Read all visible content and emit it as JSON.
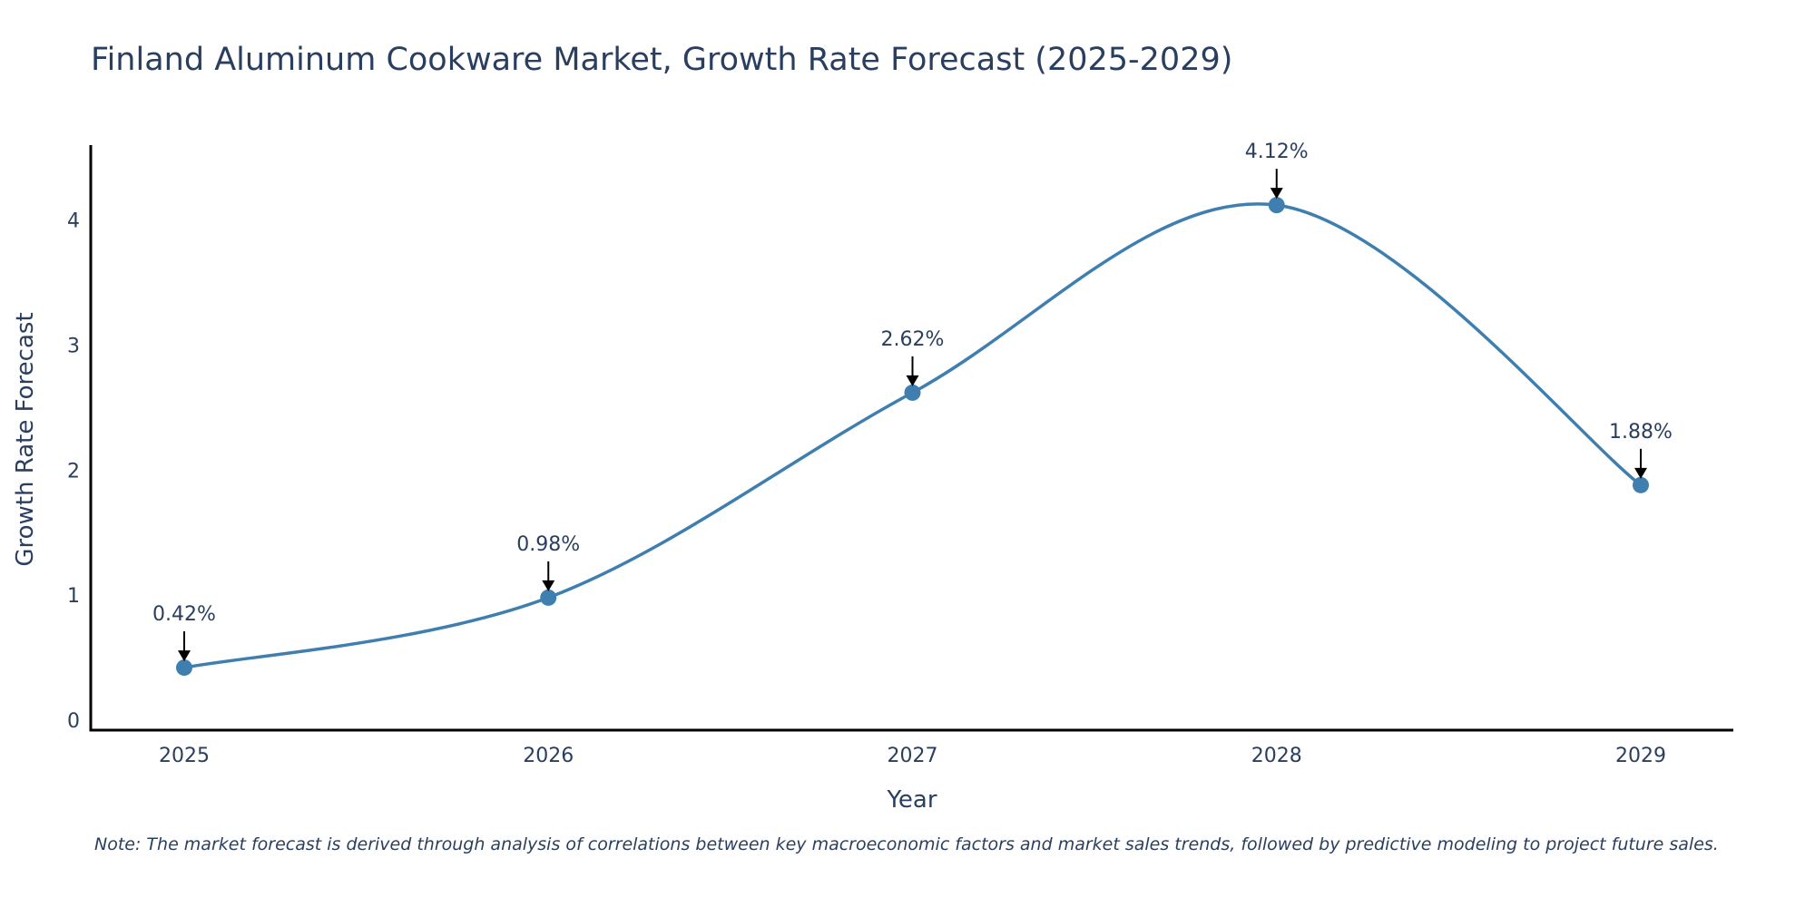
{
  "title": "Finland Aluminum Cookware Market, Growth Rate Forecast (2025-2029)",
  "note": "Note: The market forecast is derived through analysis of correlations between key macroeconomic factors and market sales trends, followed by predictive modeling to project future sales.",
  "colors": {
    "line": "#3f7fb0",
    "marker": "#3f7fb0",
    "axis": "#000000",
    "text": "#2a3f5f"
  },
  "chart_data": {
    "type": "line",
    "title": "Finland Aluminum Cookware Market, Growth Rate Forecast (2025-2029)",
    "xlabel": "Year",
    "ylabel": "Growth Rate Forecast",
    "categories": [
      "2025",
      "2026",
      "2027",
      "2028",
      "2029"
    ],
    "values": [
      0.42,
      0.98,
      2.62,
      4.12,
      1.88
    ],
    "data_labels": [
      "0.42%",
      "0.98%",
      "2.62%",
      "4.12%",
      "1.88%"
    ],
    "yticks": [
      "0",
      "1",
      "2",
      "3",
      "4"
    ],
    "ylim": [
      -0.08,
      4.6
    ],
    "grid": false,
    "line_shape": "spline"
  }
}
